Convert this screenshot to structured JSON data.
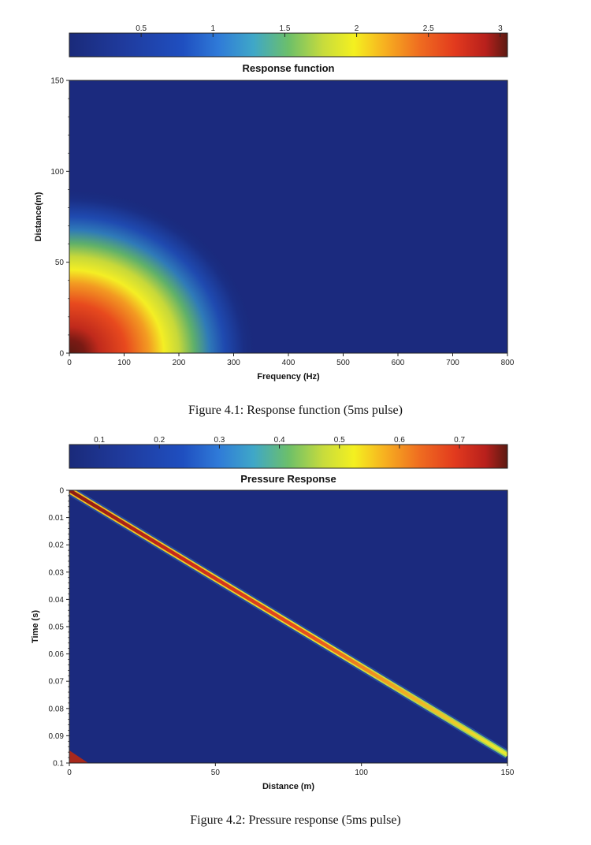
{
  "figure1": {
    "caption": "Figure 4.1: Response function (5ms pulse)"
  },
  "figure2": {
    "caption": "Figure 4.2: Pressure response (5ms pulse)"
  },
  "chart_data": [
    {
      "type": "heatmap",
      "title": "Response function",
      "xlabel": "Frequency (Hz)",
      "ylabel": "Distance(m)",
      "xlim": [
        0,
        800
      ],
      "ylim": [
        0,
        150
      ],
      "xticks": [
        "0",
        "100",
        "200",
        "300",
        "400",
        "500",
        "600",
        "700",
        "800"
      ],
      "yticks": [
        "0",
        "50",
        "100",
        "150"
      ],
      "colorbar": {
        "range": [
          0,
          3.05
        ],
        "tick_values": [
          0.5,
          1,
          1.5,
          2,
          2.5,
          3
        ],
        "tick_labels": [
          "0.5",
          "1",
          "1.5",
          "2",
          "2.5",
          "3"
        ],
        "colormap": "jet"
      },
      "description_values": {
        "peak_value": 3.05,
        "peak_location": {
          "frequency": 0,
          "distance": 0
        },
        "falloff_contour_radius_frequency": 240,
        "falloff_contour_radius_distance": 55
      }
    },
    {
      "type": "heatmap",
      "title": "Pressure Response",
      "xlabel": "Distance (m)",
      "ylabel": "Time (s)",
      "xlim": [
        0,
        150
      ],
      "ylim": [
        0,
        0.1
      ],
      "xticks": [
        "0",
        "50",
        "100",
        "150"
      ],
      "yticks": [
        "0",
        "0.01",
        "0.02",
        "0.03",
        "0.04",
        "0.05",
        "0.06",
        "0.07",
        "0.08",
        "0.09",
        "0.1"
      ],
      "colorbar": {
        "range": [
          0.05,
          0.78
        ],
        "tick_values": [
          0.1,
          0.2,
          0.3,
          0.4,
          0.5,
          0.6,
          0.7
        ],
        "tick_labels": [
          "0.1",
          "0.2",
          "0.3",
          "0.4",
          "0.5",
          "0.6",
          "0.7"
        ],
        "colormap": "jet"
      },
      "ridge": {
        "start": {
          "distance": 0,
          "time": 0
        },
        "end": {
          "distance": 150,
          "time": 0.097
        },
        "peak_start": 0.78,
        "peak_end": 0.45
      }
    }
  ]
}
